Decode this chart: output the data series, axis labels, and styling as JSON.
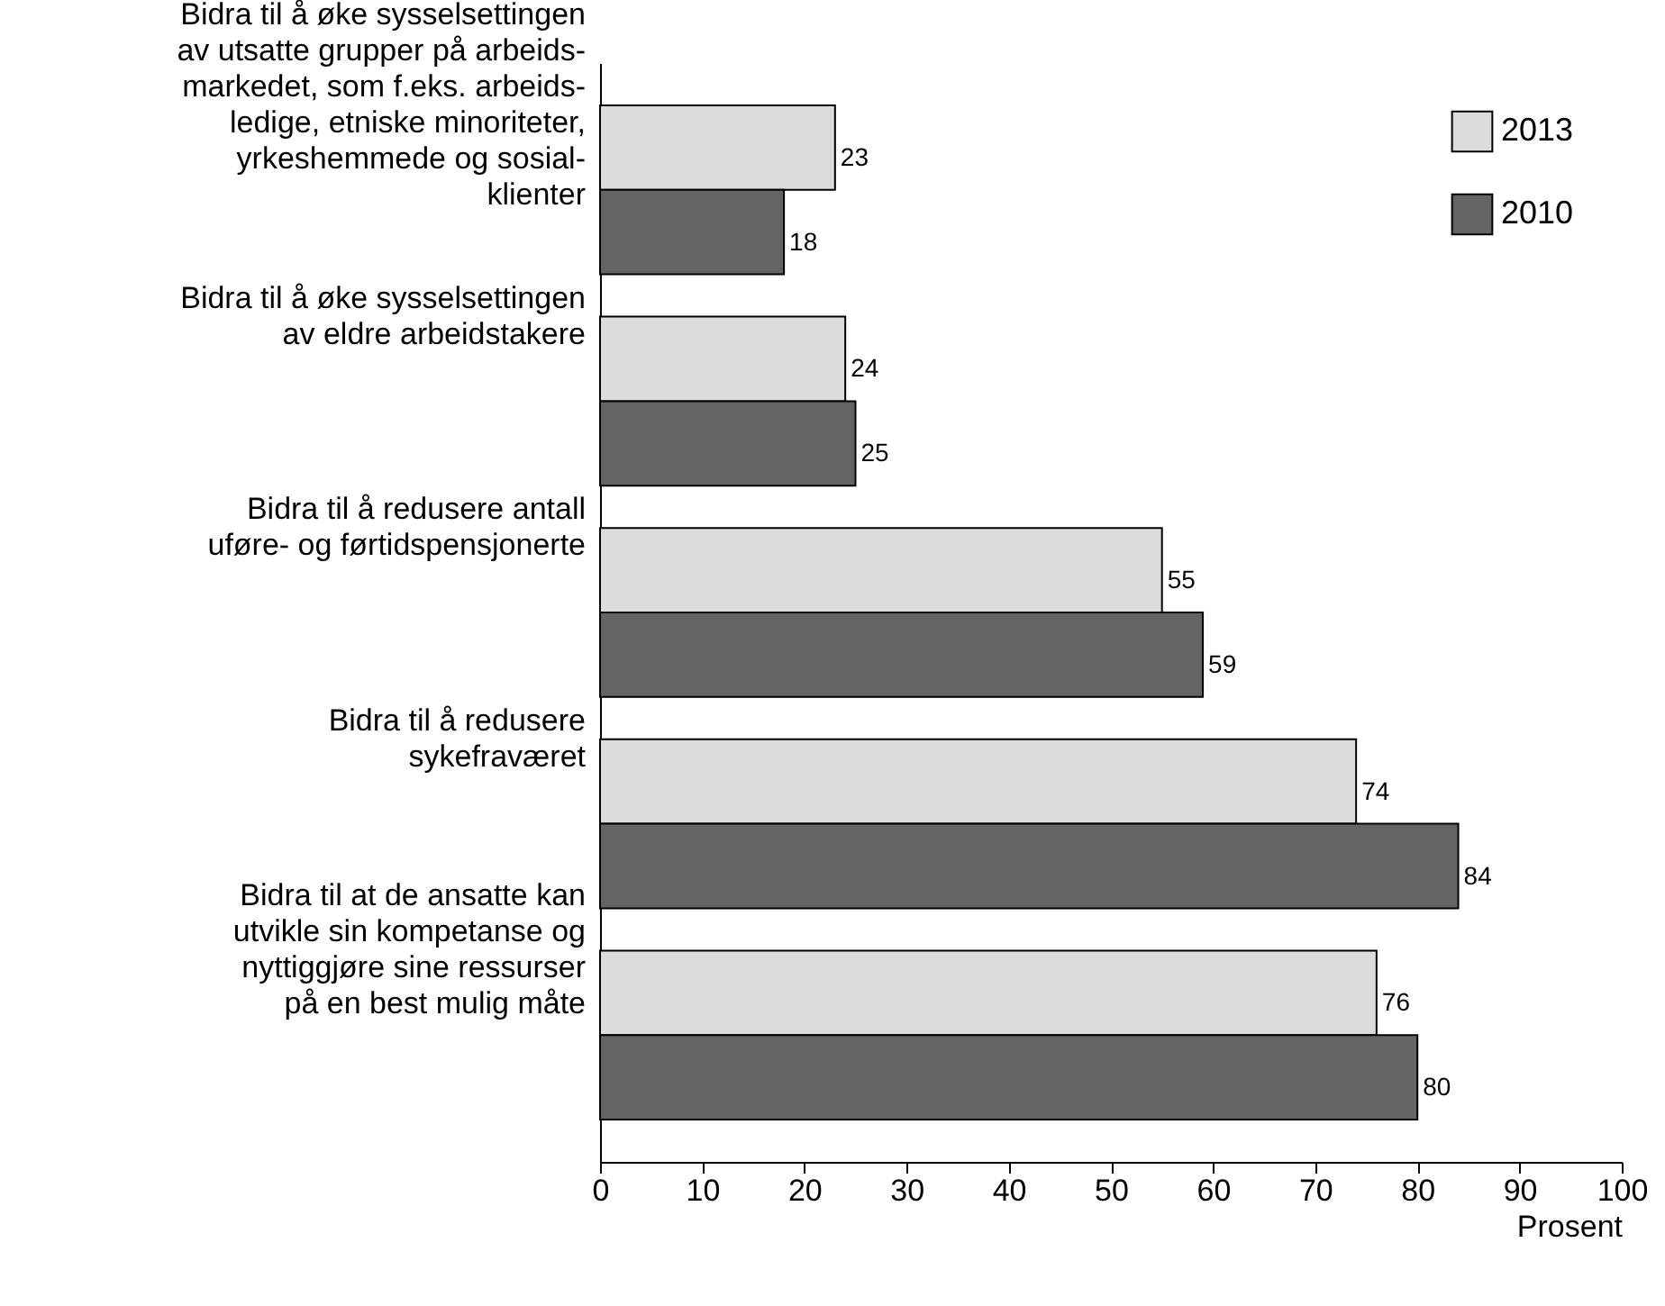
{
  "chart_data": {
    "type": "bar",
    "orientation": "horizontal",
    "xlabel": "Prosent",
    "categories": [
      "Bidra til å øke sysselsettingen\nav utsatte grupper på arbeids-\nmarkedet, som f.eks. arbeids-\nledige, etniske minoriteter,\nyrkeshemmede og sosial-\nklienter",
      "Bidra til å øke sysselsettingen\nav eldre arbeidstakere",
      "Bidra til å redusere antall\nuføre- og førtidspensjonerte",
      "Bidra til å redusere\nsykefraværet",
      "Bidra til at de ansatte kan\nutvikle sin kompetanse og\nnyttiggjøre sine ressurser\npå en best mulig måte"
    ],
    "series": [
      {
        "name": "2013",
        "color": "#dcdcdc",
        "values": [
          23,
          24,
          55,
          74,
          76
        ]
      },
      {
        "name": "2010",
        "color": "#646464",
        "values": [
          18,
          25,
          59,
          84,
          80
        ]
      }
    ],
    "xlim": [
      0,
      100
    ],
    "xticks": [
      0,
      10,
      20,
      30,
      40,
      50,
      60,
      70,
      80,
      90,
      100
    ],
    "data_labels": true,
    "legend": "top right",
    "grid": false
  }
}
